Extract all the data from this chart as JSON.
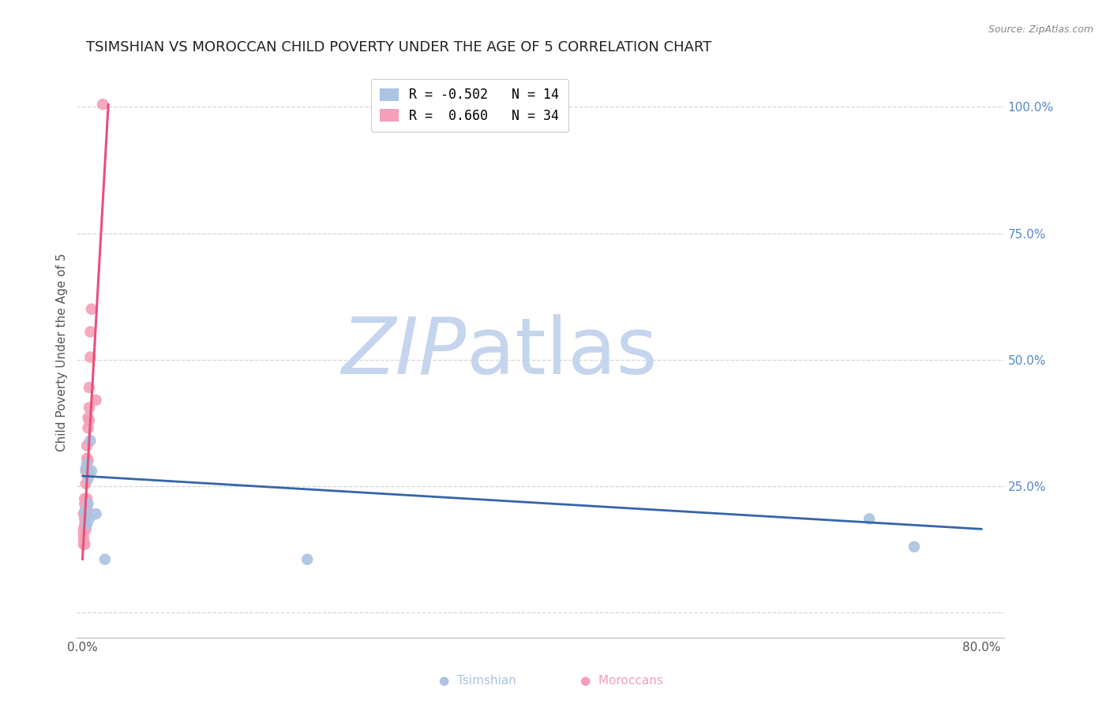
{
  "title": "TSIMSHIAN VS MOROCCAN CHILD POVERTY UNDER THE AGE OF 5 CORRELATION CHART",
  "source": "Source: ZipAtlas.com",
  "ylabel": "Child Poverty Under the Age of 5",
  "xlim": [
    -0.005,
    0.82
  ],
  "ylim": [
    -0.05,
    1.08
  ],
  "yticks": [
    0.0,
    0.25,
    0.5,
    0.75,
    1.0
  ],
  "yticklabels_right": [
    "",
    "25.0%",
    "50.0%",
    "75.0%",
    "100.0%"
  ],
  "xticks": [
    0.0,
    0.1,
    0.2,
    0.3,
    0.4,
    0.5,
    0.6,
    0.7,
    0.8
  ],
  "xticklabels": [
    "0.0%",
    "",
    "",
    "",
    "",
    "",
    "",
    "",
    "80.0%"
  ],
  "tsimshian_x": [
    0.002,
    0.003,
    0.004,
    0.004,
    0.005,
    0.005,
    0.006,
    0.007,
    0.008,
    0.012,
    0.02,
    0.2,
    0.7,
    0.74
  ],
  "tsimshian_y": [
    0.2,
    0.285,
    0.175,
    0.295,
    0.265,
    0.215,
    0.185,
    0.34,
    0.28,
    0.195,
    0.105,
    0.105,
    0.185,
    0.13
  ],
  "moroccan_x": [
    0.001,
    0.001,
    0.001,
    0.001,
    0.001,
    0.002,
    0.002,
    0.002,
    0.002,
    0.002,
    0.002,
    0.003,
    0.003,
    0.003,
    0.003,
    0.003,
    0.003,
    0.004,
    0.004,
    0.004,
    0.004,
    0.004,
    0.005,
    0.005,
    0.005,
    0.005,
    0.006,
    0.006,
    0.006,
    0.007,
    0.007,
    0.008,
    0.012,
    0.018
  ],
  "moroccan_y": [
    0.145,
    0.155,
    0.165,
    0.135,
    0.195,
    0.175,
    0.185,
    0.2,
    0.215,
    0.225,
    0.135,
    0.255,
    0.28,
    0.215,
    0.195,
    0.175,
    0.165,
    0.305,
    0.33,
    0.225,
    0.215,
    0.205,
    0.365,
    0.385,
    0.28,
    0.3,
    0.405,
    0.445,
    0.38,
    0.505,
    0.555,
    0.6,
    0.42,
    1.005
  ],
  "tsimshian_color": "#aac4e2",
  "moroccan_color": "#f5a0b8",
  "tsimshian_line_color": "#3465a8",
  "moroccan_line_color": "#e8507a",
  "moroccan_line_x": [
    0.0,
    0.023
  ],
  "moroccan_line_y": [
    0.105,
    1.005
  ],
  "tsimshian_line_x": [
    0.0,
    0.8
  ],
  "tsimshian_line_y": [
    0.27,
    0.165
  ],
  "watermark_zip": "ZIP",
  "watermark_atlas": "atlas",
  "watermark_color_zip": "#c5d5ed",
  "watermark_color_atlas": "#c5d5ed",
  "background_color": "#ffffff",
  "grid_color": "#cccccc",
  "right_axis_color": "#5588cc",
  "title_fontsize": 13,
  "axis_label_fontsize": 11,
  "tick_fontsize": 11,
  "legend_r_tsimshian": "R = -0.502",
  "legend_n_tsimshian": "N = 14",
  "legend_r_moroccan": "R =  0.660",
  "legend_n_moroccan": "N = 34"
}
